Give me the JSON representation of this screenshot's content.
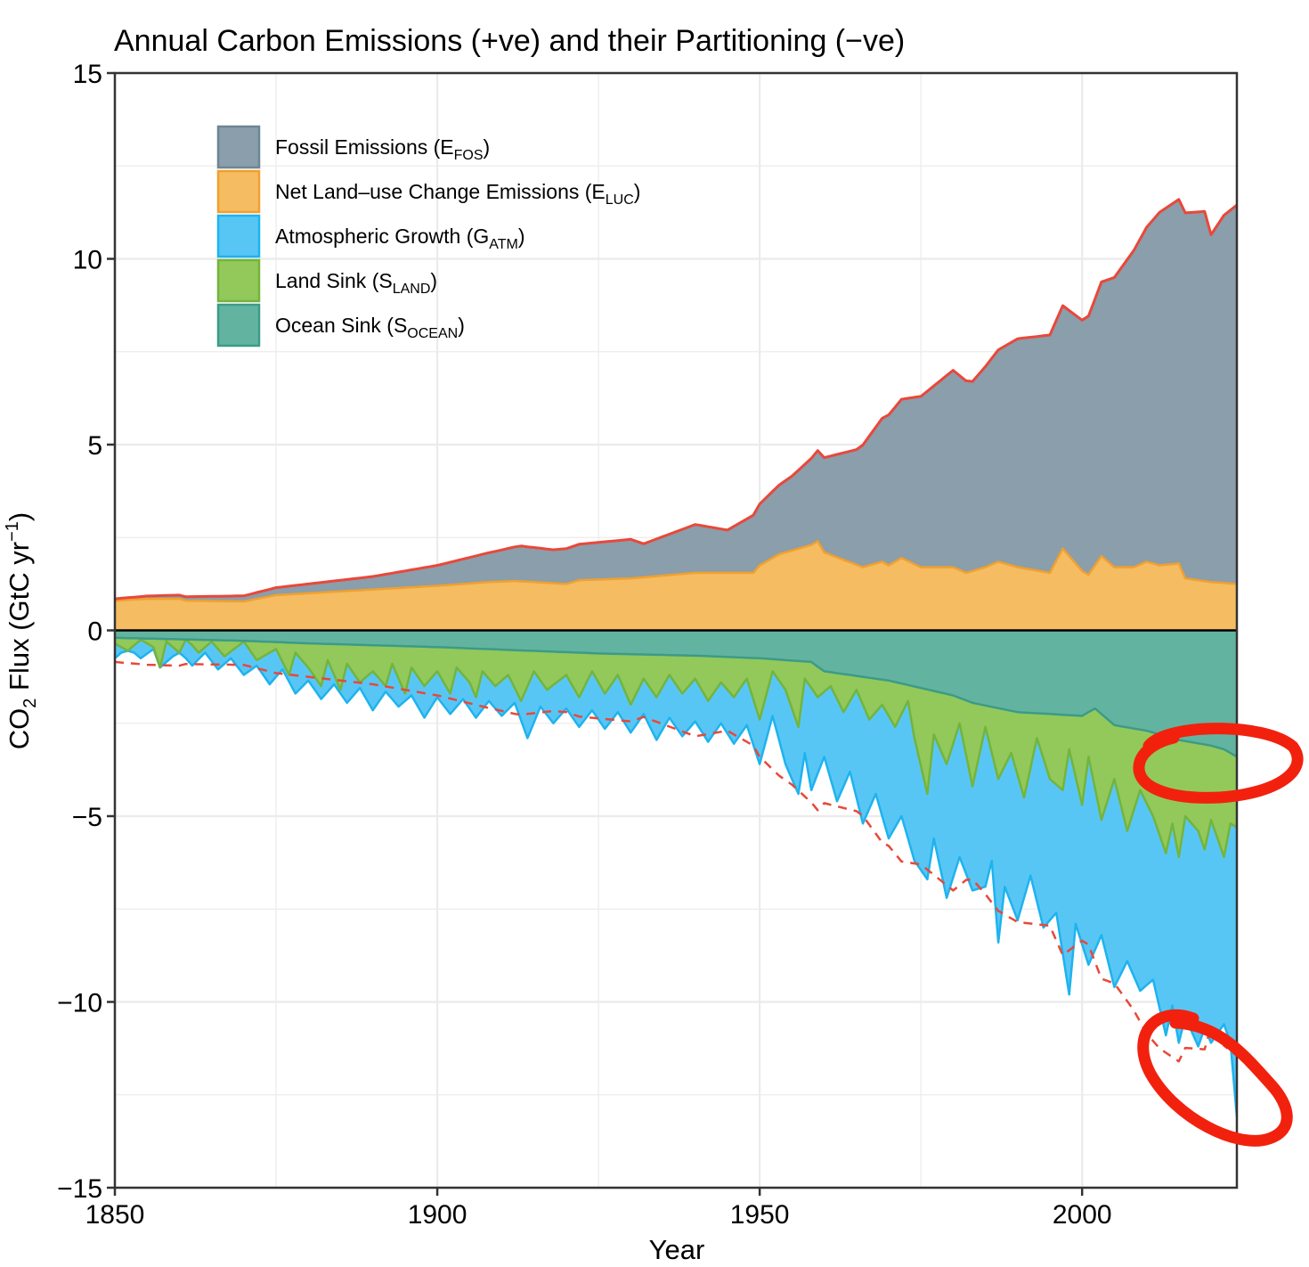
{
  "chart_data": {
    "type": "area",
    "title": "Annual Carbon Emissions (+ve) and their Partitioning (−ve)",
    "xlabel": "Year",
    "ylabel": "CO2 Flux (GtC yr−1)",
    "ylabel_parts": {
      "pre": "CO",
      "sub": "2",
      "mid": " Flux (GtC yr",
      "sup": "−1",
      "post": ")"
    },
    "xlim": [
      1850,
      2024
    ],
    "ylim": [
      -15,
      15
    ],
    "xticks": [
      1850,
      1900,
      1950,
      2000
    ],
    "xtick_labels": [
      "1850",
      "1900",
      "1950",
      "2000"
    ],
    "yticks": [
      15,
      10,
      5,
      0,
      -5,
      -10,
      -15
    ],
    "ytick_labels": [
      "15",
      "10",
      "5",
      "0",
      "−5",
      "−10",
      "−15"
    ],
    "grid": true,
    "legend_position": "top-left",
    "legend": [
      {
        "key": "efos",
        "label": "Fossil Emissions (E",
        "sub": "FOS",
        "close": ")",
        "color": "#8A9EAB",
        "edge": "#6E8593"
      },
      {
        "key": "eluc",
        "label": "Net Land–use Change Emissions (E",
        "sub": "LUC",
        "close": ")",
        "color": "#F5BC61",
        "edge": "#F0A030"
      },
      {
        "key": "gatm",
        "label": "Atmospheric Growth (G",
        "sub": "ATM",
        "close": ")",
        "color": "#58C6F5",
        "edge": "#1EB3EE"
      },
      {
        "key": "sland",
        "label": "Land Sink (S",
        "sub": "LAND",
        "close": ")",
        "color": "#92C95A",
        "edge": "#73B43C"
      },
      {
        "key": "socean",
        "label": "Ocean Sink (S",
        "sub": "OCEAN",
        "close": ")",
        "color": "#62B4A0",
        "edge": "#3C9B88"
      }
    ],
    "series_keyframes_note": "Values in GtC/yr read from the figure; linear interpolation between keyframes.",
    "efos_keyframes": [
      [
        1850,
        0.05
      ],
      [
        1870,
        0.15
      ],
      [
        1880,
        0.25
      ],
      [
        1890,
        0.35
      ],
      [
        1900,
        0.55
      ],
      [
        1910,
        0.85
      ],
      [
        1913,
        0.95
      ],
      [
        1918,
        0.9
      ],
      [
        1920,
        0.95
      ],
      [
        1930,
        1.05
      ],
      [
        1932,
        0.9
      ],
      [
        1940,
        1.3
      ],
      [
        1945,
        1.15
      ],
      [
        1950,
        1.65
      ],
      [
        1955,
        2.0
      ],
      [
        1960,
        2.55
      ],
      [
        1965,
        3.1
      ],
      [
        1970,
        4.05
      ],
      [
        1975,
        4.6
      ],
      [
        1980,
        5.3
      ],
      [
        1983,
        5.1
      ],
      [
        1990,
        6.15
      ],
      [
        1995,
        6.4
      ],
      [
        2000,
        6.75
      ],
      [
        2005,
        7.8
      ],
      [
        2010,
        9.0
      ],
      [
        2012,
        9.5
      ],
      [
        2015,
        9.8
      ],
      [
        2019,
        9.95
      ],
      [
        2020,
        9.35
      ],
      [
        2022,
        9.9
      ],
      [
        2024,
        10.2
      ]
    ],
    "eluc_keyframes": [
      [
        1850,
        0.8
      ],
      [
        1855,
        0.85
      ],
      [
        1860,
        0.85
      ],
      [
        1861,
        0.8
      ],
      [
        1870,
        0.78
      ],
      [
        1875,
        0.95
      ],
      [
        1880,
        1.0
      ],
      [
        1890,
        1.1
      ],
      [
        1900,
        1.2
      ],
      [
        1908,
        1.3
      ],
      [
        1912,
        1.33
      ],
      [
        1915,
        1.3
      ],
      [
        1920,
        1.25
      ],
      [
        1922,
        1.35
      ],
      [
        1930,
        1.4
      ],
      [
        1940,
        1.55
      ],
      [
        1949,
        1.55
      ],
      [
        1950,
        1.75
      ],
      [
        1953,
        2.05
      ],
      [
        1958,
        2.3
      ],
      [
        1959,
        2.4
      ],
      [
        1960,
        2.1
      ],
      [
        1963,
        1.9
      ],
      [
        1966,
        1.7
      ],
      [
        1969,
        1.85
      ],
      [
        1970,
        1.75
      ],
      [
        1972,
        1.95
      ],
      [
        1975,
        1.7
      ],
      [
        1980,
        1.7
      ],
      [
        1982,
        1.55
      ],
      [
        1985,
        1.7
      ],
      [
        1987,
        1.85
      ],
      [
        1990,
        1.7
      ],
      [
        1995,
        1.55
      ],
      [
        1997,
        2.2
      ],
      [
        2000,
        1.6
      ],
      [
        2001,
        1.5
      ],
      [
        2003,
        2.0
      ],
      [
        2005,
        1.7
      ],
      [
        2008,
        1.7
      ],
      [
        2010,
        1.85
      ],
      [
        2012,
        1.75
      ],
      [
        2015,
        1.8
      ],
      [
        2016,
        1.4
      ],
      [
        2020,
        1.3
      ],
      [
        2024,
        1.25
      ]
    ],
    "socean_keyframes": [
      [
        1850,
        -0.2
      ],
      [
        1870,
        -0.28
      ],
      [
        1880,
        -0.35
      ],
      [
        1900,
        -0.45
      ],
      [
        1925,
        -0.62
      ],
      [
        1940,
        -0.68
      ],
      [
        1950,
        -0.75
      ],
      [
        1958,
        -0.85
      ],
      [
        1960,
        -1.1
      ],
      [
        1970,
        -1.35
      ],
      [
        1980,
        -1.75
      ],
      [
        1983,
        -1.95
      ],
      [
        1990,
        -2.2
      ],
      [
        2000,
        -2.3
      ],
      [
        2002,
        -2.1
      ],
      [
        2005,
        -2.55
      ],
      [
        2010,
        -2.7
      ],
      [
        2015,
        -2.95
      ],
      [
        2020,
        -3.1
      ],
      [
        2022,
        -3.2
      ],
      [
        2024,
        -3.4
      ]
    ],
    "sland_keyframes": [
      [
        1850,
        -0.35
      ],
      [
        1852,
        -0.55
      ],
      [
        1854,
        -0.25
      ],
      [
        1856,
        -0.45
      ],
      [
        1857,
        -1.0
      ],
      [
        1858,
        -0.3
      ],
      [
        1860,
        -0.6
      ],
      [
        1861,
        -0.2
      ],
      [
        1863,
        -0.6
      ],
      [
        1865,
        -0.3
      ],
      [
        1867,
        -0.7
      ],
      [
        1870,
        -0.3
      ],
      [
        1872,
        -0.8
      ],
      [
        1875,
        -0.5
      ],
      [
        1877,
        -1.2
      ],
      [
        1878,
        -0.6
      ],
      [
        1880,
        -1.0
      ],
      [
        1882,
        -1.5
      ],
      [
        1883,
        -0.8
      ],
      [
        1885,
        -1.6
      ],
      [
        1886,
        -0.9
      ],
      [
        1888,
        -1.4
      ],
      [
        1890,
        -1.1
      ],
      [
        1892,
        -1.5
      ],
      [
        1893,
        -0.9
      ],
      [
        1895,
        -1.7
      ],
      [
        1896,
        -1.0
      ],
      [
        1898,
        -1.5
      ],
      [
        1900,
        -1.1
      ],
      [
        1902,
        -1.7
      ],
      [
        1903,
        -1.0
      ],
      [
        1905,
        -1.4
      ],
      [
        1906,
        -1.8
      ],
      [
        1907,
        -1.1
      ],
      [
        1909,
        -1.5
      ],
      [
        1911,
        -1.2
      ],
      [
        1913,
        -1.9
      ],
      [
        1915,
        -1.1
      ],
      [
        1917,
        -1.6
      ],
      [
        1920,
        -1.2
      ],
      [
        1922,
        -1.8
      ],
      [
        1924,
        -1.1
      ],
      [
        1926,
        -1.7
      ],
      [
        1928,
        -1.2
      ],
      [
        1930,
        -2.0
      ],
      [
        1932,
        -1.3
      ],
      [
        1934,
        -1.8
      ],
      [
        1936,
        -1.2
      ],
      [
        1938,
        -1.7
      ],
      [
        1940,
        -1.3
      ],
      [
        1942,
        -1.9
      ],
      [
        1944,
        -1.4
      ],
      [
        1946,
        -1.8
      ],
      [
        1948,
        -1.3
      ],
      [
        1950,
        -2.4
      ],
      [
        1952,
        -1.1
      ],
      [
        1954,
        -1.6
      ],
      [
        1956,
        -2.6
      ],
      [
        1957,
        -1.3
      ],
      [
        1959,
        -1.8
      ],
      [
        1961,
        -1.5
      ],
      [
        1963,
        -2.2
      ],
      [
        1965,
        -1.6
      ],
      [
        1967,
        -2.4
      ],
      [
        1969,
        -2.0
      ],
      [
        1971,
        -2.6
      ],
      [
        1973,
        -1.9
      ],
      [
        1974,
        -2.9
      ],
      [
        1976,
        -4.4
      ],
      [
        1977,
        -2.8
      ],
      [
        1979,
        -3.6
      ],
      [
        1981,
        -2.5
      ],
      [
        1983,
        -4.2
      ],
      [
        1985,
        -2.6
      ],
      [
        1987,
        -4.0
      ],
      [
        1989,
        -3.3
      ],
      [
        1991,
        -4.5
      ],
      [
        1993,
        -2.9
      ],
      [
        1995,
        -4.0
      ],
      [
        1997,
        -4.3
      ],
      [
        1998,
        -3.2
      ],
      [
        2000,
        -4.7
      ],
      [
        2001,
        -3.4
      ],
      [
        2003,
        -5.1
      ],
      [
        2005,
        -4.0
      ],
      [
        2007,
        -5.4
      ],
      [
        2009,
        -4.3
      ],
      [
        2011,
        -5.0
      ],
      [
        2013,
        -6.0
      ],
      [
        2014,
        -5.2
      ],
      [
        2015,
        -6.1
      ],
      [
        2016,
        -5.0
      ],
      [
        2018,
        -5.4
      ],
      [
        2019,
        -5.9
      ],
      [
        2020,
        -5.1
      ],
      [
        2022,
        -6.1
      ],
      [
        2023,
        -5.2
      ],
      [
        2024,
        -5.3
      ]
    ],
    "gatm_keyframes": [
      [
        1850,
        -0.75
      ],
      [
        1852,
        -0.45
      ],
      [
        1854,
        -0.75
      ],
      [
        1856,
        -0.5
      ],
      [
        1858,
        -0.85
      ],
      [
        1860,
        -0.55
      ],
      [
        1862,
        -0.95
      ],
      [
        1864,
        -0.6
      ],
      [
        1866,
        -1.05
      ],
      [
        1868,
        -0.75
      ],
      [
        1870,
        -1.2
      ],
      [
        1872,
        -0.95
      ],
      [
        1874,
        -1.45
      ],
      [
        1876,
        -1.05
      ],
      [
        1878,
        -1.7
      ],
      [
        1880,
        -1.35
      ],
      [
        1882,
        -1.85
      ],
      [
        1884,
        -1.45
      ],
      [
        1886,
        -1.95
      ],
      [
        1888,
        -1.55
      ],
      [
        1890,
        -2.15
      ],
      [
        1892,
        -1.65
      ],
      [
        1894,
        -2.05
      ],
      [
        1896,
        -1.75
      ],
      [
        1898,
        -2.35
      ],
      [
        1900,
        -1.8
      ],
      [
        1902,
        -2.25
      ],
      [
        1904,
        -1.85
      ],
      [
        1906,
        -2.35
      ],
      [
        1908,
        -1.9
      ],
      [
        1910,
        -2.3
      ],
      [
        1912,
        -1.95
      ],
      [
        1914,
        -2.9
      ],
      [
        1916,
        -2.05
      ],
      [
        1918,
        -2.5
      ],
      [
        1920,
        -2.1
      ],
      [
        1922,
        -2.6
      ],
      [
        1924,
        -2.15
      ],
      [
        1926,
        -2.65
      ],
      [
        1928,
        -2.2
      ],
      [
        1930,
        -2.75
      ],
      [
        1932,
        -2.25
      ],
      [
        1934,
        -2.95
      ],
      [
        1936,
        -2.35
      ],
      [
        1938,
        -2.85
      ],
      [
        1940,
        -2.45
      ],
      [
        1942,
        -3.0
      ],
      [
        1944,
        -2.5
      ],
      [
        1946,
        -3.05
      ],
      [
        1948,
        -2.55
      ],
      [
        1950,
        -3.6
      ],
      [
        1952,
        -2.3
      ],
      [
        1954,
        -3.6
      ],
      [
        1956,
        -4.4
      ],
      [
        1957,
        -3.3
      ],
      [
        1958,
        -4.3
      ],
      [
        1960,
        -3.4
      ],
      [
        1962,
        -4.6
      ],
      [
        1964,
        -3.8
      ],
      [
        1966,
        -5.2
      ],
      [
        1968,
        -4.4
      ],
      [
        1970,
        -5.6
      ],
      [
        1972,
        -5.0
      ],
      [
        1974,
        -6.2
      ],
      [
        1976,
        -6.7
      ],
      [
        1977,
        -5.6
      ],
      [
        1979,
        -7.2
      ],
      [
        1981,
        -6.1
      ],
      [
        1983,
        -7.0
      ],
      [
        1985,
        -6.9
      ],
      [
        1986,
        -6.2
      ],
      [
        1987,
        -8.4
      ],
      [
        1988,
        -6.9
      ],
      [
        1990,
        -7.8
      ],
      [
        1992,
        -6.6
      ],
      [
        1994,
        -8.0
      ],
      [
        1996,
        -7.6
      ],
      [
        1998,
        -9.8
      ],
      [
        1999,
        -7.9
      ],
      [
        2001,
        -9.0
      ],
      [
        2003,
        -8.2
      ],
      [
        2005,
        -9.6
      ],
      [
        2007,
        -8.9
      ],
      [
        2009,
        -9.7
      ],
      [
        2011,
        -9.4
      ],
      [
        2013,
        -10.9
      ],
      [
        2014,
        -10.1
      ],
      [
        2015,
        -11.1
      ],
      [
        2016,
        -10.4
      ],
      [
        2018,
        -11.2
      ],
      [
        2019,
        -10.7
      ],
      [
        2020,
        -11.1
      ],
      [
        2022,
        -10.6
      ],
      [
        2023,
        -11.1
      ],
      [
        2024,
        -13.1
      ]
    ]
  },
  "annotations": [
    {
      "name": "red-circle-ocean-sink",
      "description": "hand-drawn red ellipse"
    },
    {
      "name": "red-circle-atm-growth",
      "description": "hand-drawn red ellipse"
    }
  ]
}
